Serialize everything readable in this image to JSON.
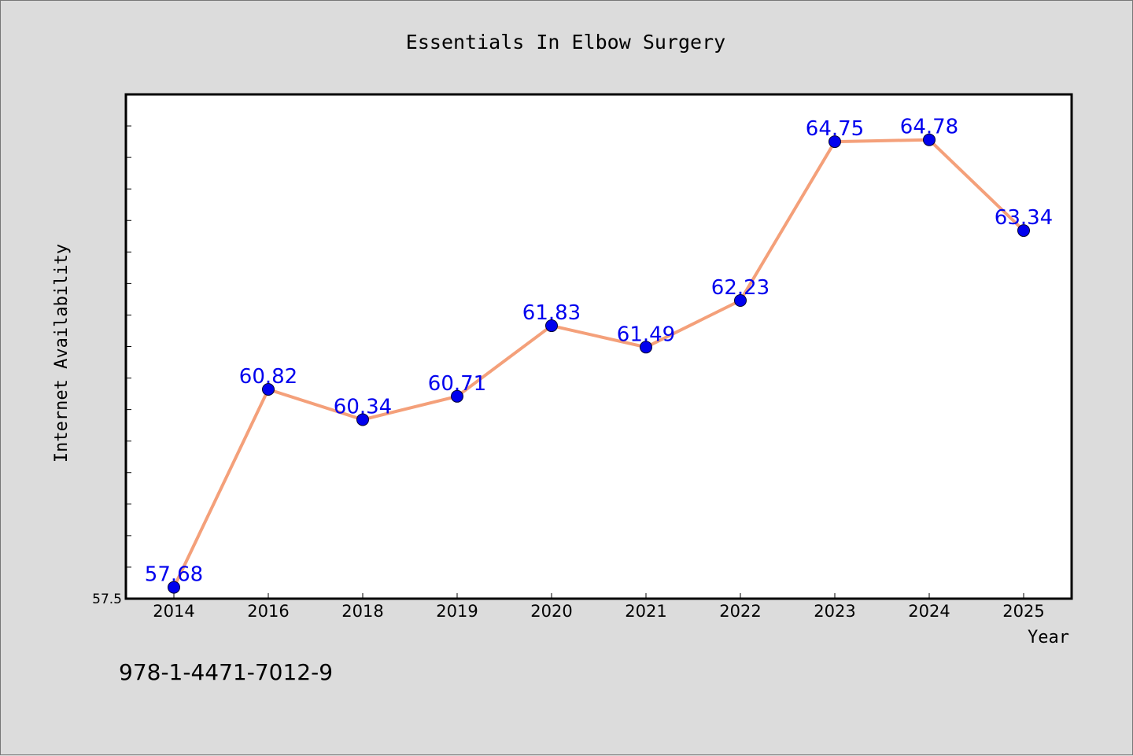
{
  "chart_data": {
    "type": "line",
    "title": "Essentials In Elbow Surgery",
    "xlabel": "Year",
    "ylabel": "Internet Availability",
    "categories": [
      "2014",
      "2016",
      "2018",
      "2019",
      "2020",
      "2021",
      "2022",
      "2023",
      "2024",
      "2025"
    ],
    "series": [
      {
        "values": [
          57.68,
          60.82,
          60.34,
          60.71,
          61.83,
          61.49,
          62.23,
          64.75,
          64.78,
          63.34
        ],
        "data_labels": [
          "57.68",
          "60.82",
          "60.34",
          "60.71",
          "61.83",
          "61.49",
          "62.23",
          "64.75",
          "64.78",
          "63.34"
        ]
      }
    ],
    "ylim": [
      57.5,
      65.5
    ],
    "ytick_label": "57.5",
    "grid": false,
    "legend": "none",
    "line_color": "#f4a07a",
    "marker_color": "#0000ee",
    "label_color": "#0000ee"
  },
  "footer": {
    "isbn": "978-1-4471-7012-9"
  }
}
